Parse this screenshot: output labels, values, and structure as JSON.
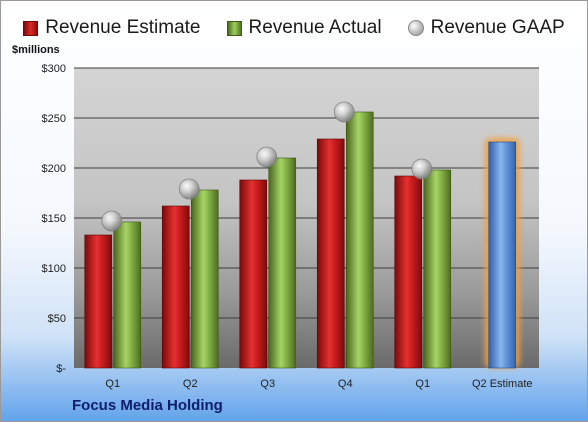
{
  "legend": {
    "estimate_label": "Revenue Estimate",
    "actual_label": "Revenue Actual",
    "gaap_label": "Revenue GAAP"
  },
  "units_label": "$millions",
  "company": "Focus Media Holding",
  "colors": {
    "estimate": "#d42020",
    "actual": "#8fbf4d",
    "gaap": "#b8b8b8",
    "future_estimate": "#5b8fd6",
    "highlight_glow": "#f0a040"
  },
  "chart_data": {
    "type": "bar",
    "categories": [
      "Q1",
      "Q2",
      "Q3",
      "Q4",
      "Q1",
      "Q2 Estimate"
    ],
    "ylim": [
      0,
      300
    ],
    "yticks": [
      {
        "value": 0,
        "label": "$-"
      },
      {
        "value": 50,
        "label": "$50"
      },
      {
        "value": 100,
        "label": "$100"
      },
      {
        "value": 150,
        "label": "$150"
      },
      {
        "value": 200,
        "label": "$200"
      },
      {
        "value": 250,
        "label": "$250"
      },
      {
        "value": 300,
        "label": "$300"
      }
    ],
    "ylabel": "$millions",
    "grid": true,
    "legend_position": "top",
    "series": [
      {
        "name": "Revenue Estimate",
        "values": [
          133,
          162,
          188,
          229,
          192,
          226
        ]
      },
      {
        "name": "Revenue Actual",
        "values": [
          146,
          178,
          210,
          256,
          198,
          null
        ]
      },
      {
        "name": "Revenue GAAP",
        "values": [
          147,
          179,
          211,
          256,
          199,
          null
        ]
      }
    ]
  }
}
